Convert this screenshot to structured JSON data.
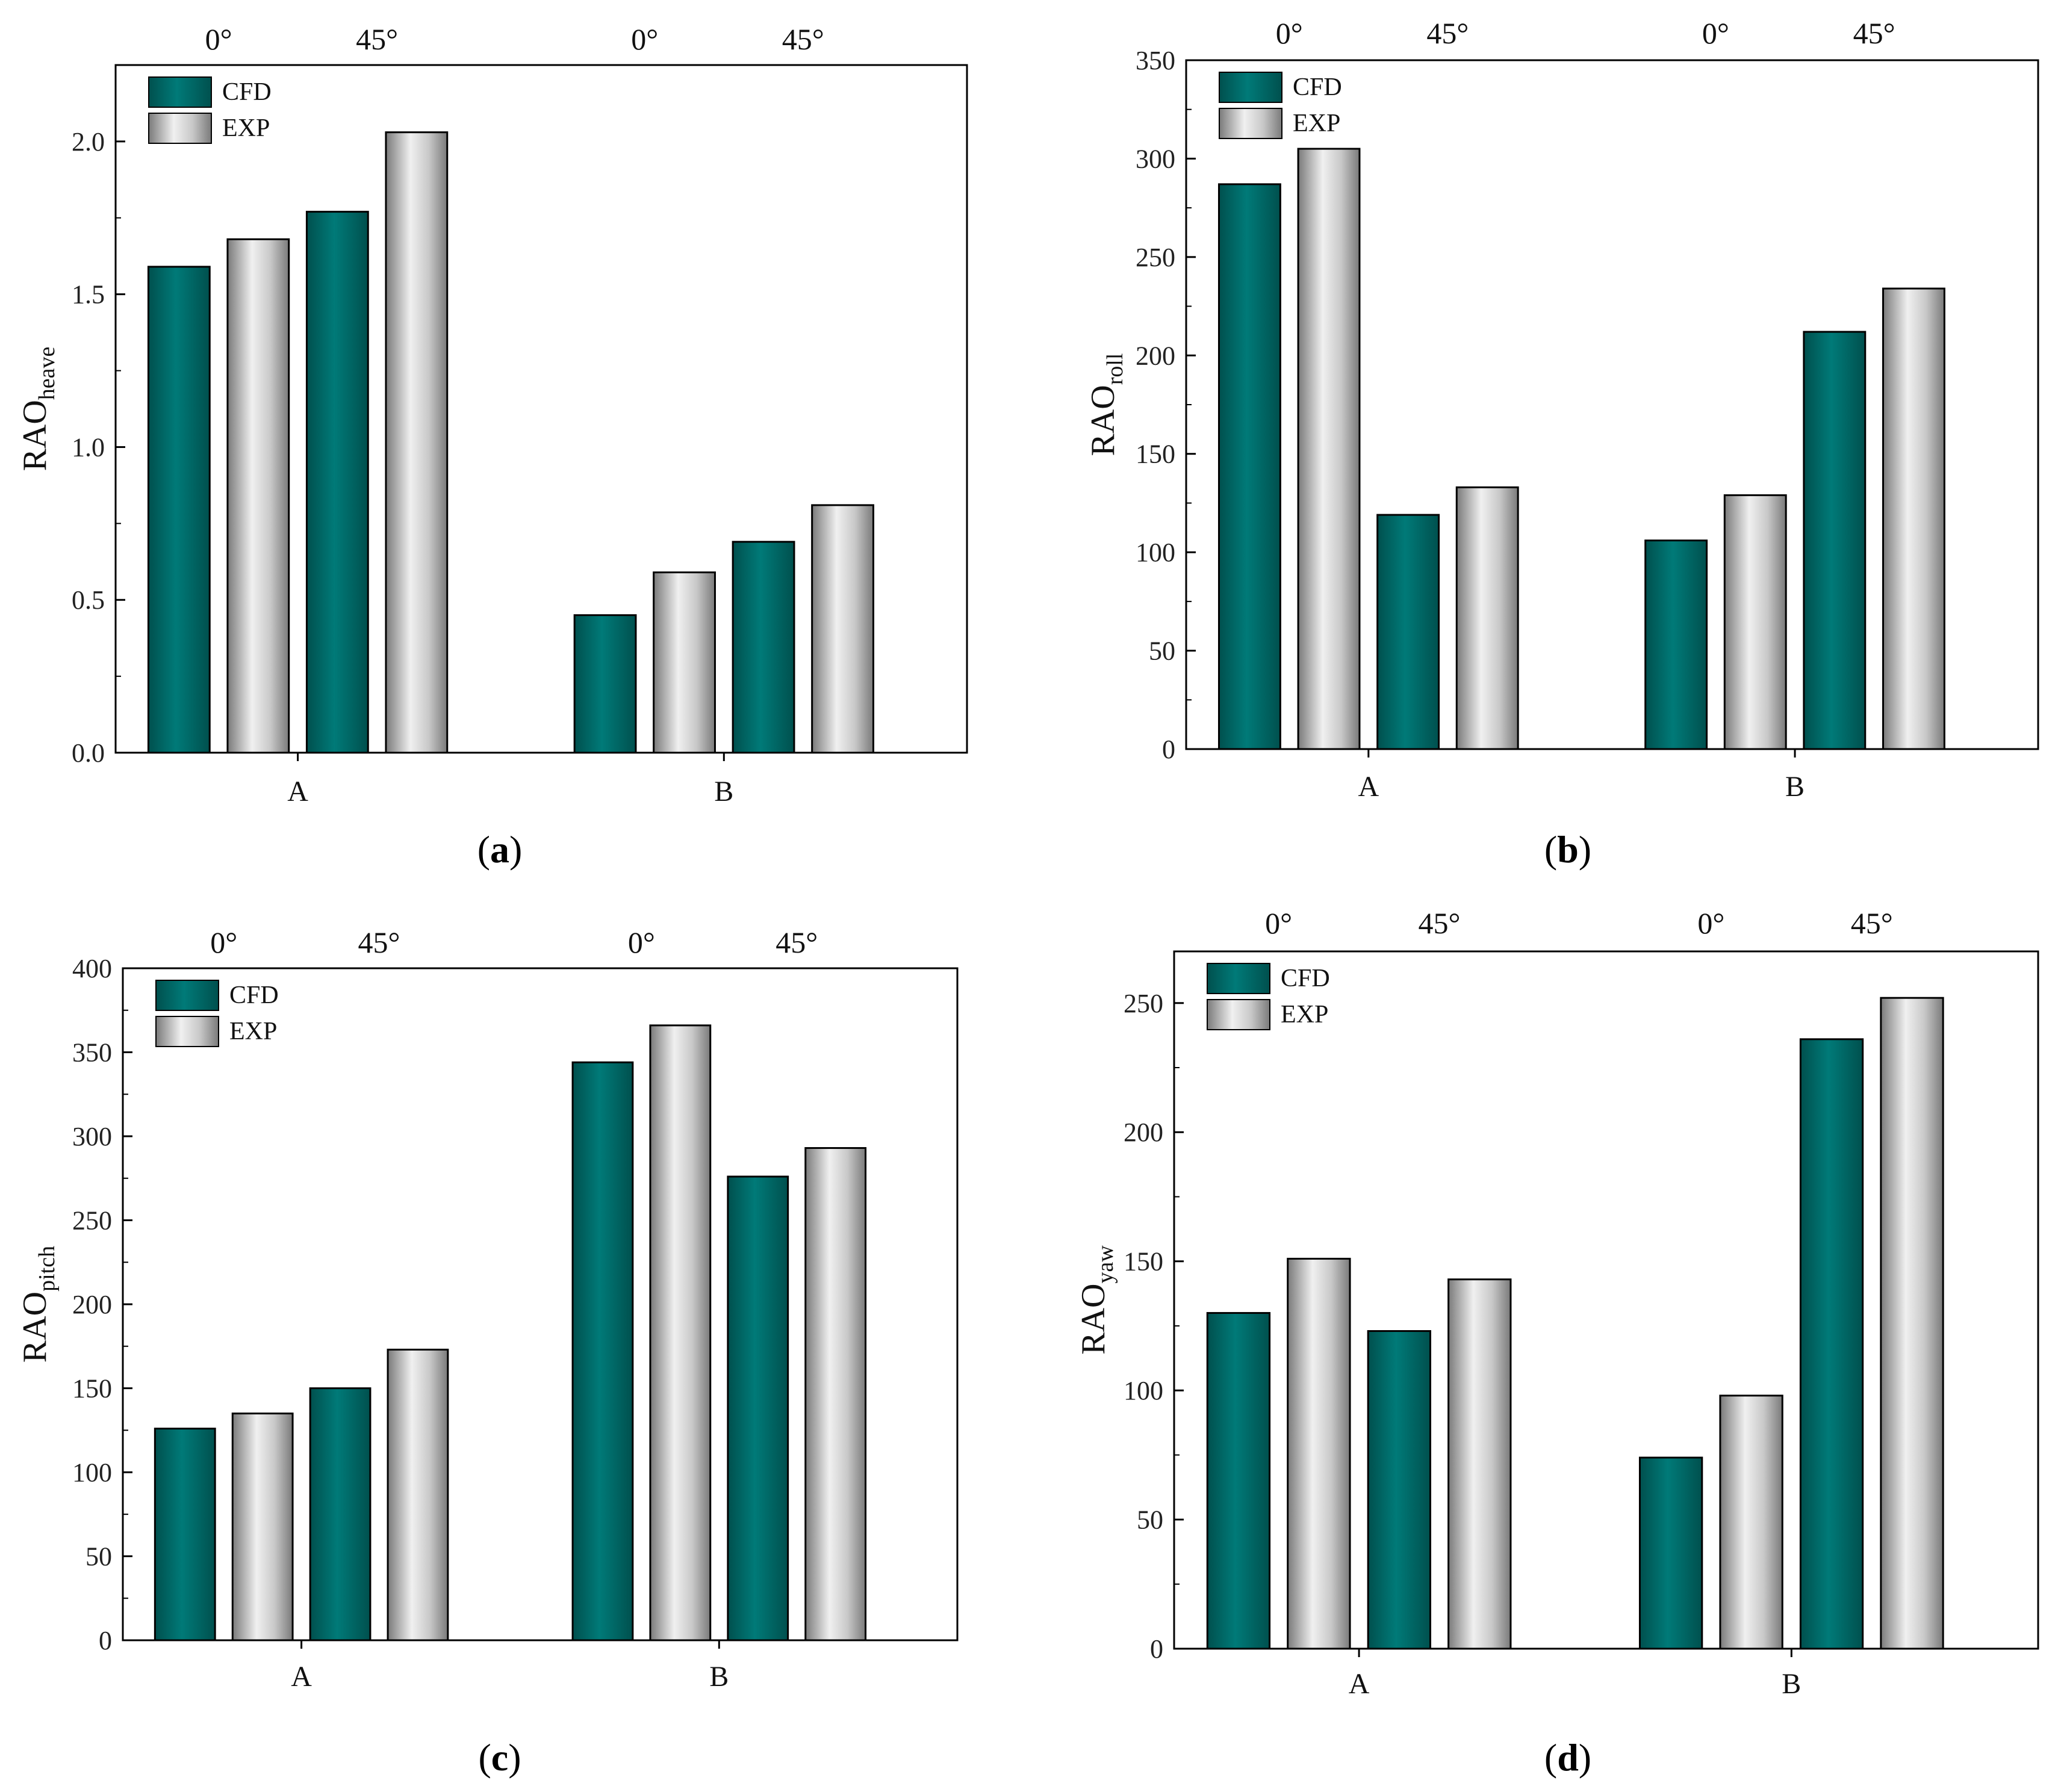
{
  "colors": {
    "cfd": "#007a78",
    "cfd_dark": "#00504e",
    "exp_light": "#f0f0f0",
    "exp_mid": "#c8c8c8",
    "exp_dark": "#7a7a7a",
    "axis": "#000000"
  },
  "chart_data": [
    {
      "type": "bar",
      "panel": "a",
      "panel_label": "a",
      "ylabel_main": "RAO",
      "ylabel_sub": "heave",
      "categories": [
        "A",
        "B"
      ],
      "angles": [
        "0°",
        "45°",
        "0°",
        "45°"
      ],
      "legend": [
        "CFD",
        "EXP"
      ],
      "ylim": [
        0,
        2.25
      ],
      "yticks": [
        0.0,
        0.5,
        1.0,
        1.5,
        2.0
      ],
      "ytick_labels": [
        "0.0",
        "0.5",
        "1.0",
        "1.5",
        "2.0"
      ],
      "series": [
        {
          "name": "CFD",
          "angle_values": {
            "A": [
              1.59,
              1.77
            ],
            "B": [
              0.45,
              0.69
            ]
          }
        },
        {
          "name": "EXP",
          "angle_values": {
            "A": [
              1.68,
              2.03
            ],
            "B": [
              0.59,
              0.81
            ]
          }
        }
      ]
    },
    {
      "type": "bar",
      "panel": "b",
      "panel_label": "b",
      "ylabel_main": "RAO",
      "ylabel_sub": "roll",
      "categories": [
        "A",
        "B"
      ],
      "angles": [
        "0°",
        "45°",
        "0°",
        "45°"
      ],
      "legend": [
        "CFD",
        "EXP"
      ],
      "ylim": [
        0,
        350
      ],
      "yticks": [
        0,
        50,
        100,
        150,
        200,
        250,
        300,
        350
      ],
      "ytick_labels": [
        "0",
        "50",
        "100",
        "150",
        "200",
        "250",
        "300",
        "350"
      ],
      "series": [
        {
          "name": "CFD",
          "angle_values": {
            "A": [
              287,
              119
            ],
            "B": [
              106,
              212
            ]
          }
        },
        {
          "name": "EXP",
          "angle_values": {
            "A": [
              305,
              133
            ],
            "B": [
              129,
              234
            ]
          }
        }
      ]
    },
    {
      "type": "bar",
      "panel": "c",
      "panel_label": "c",
      "ylabel_main": "RAO",
      "ylabel_sub": "pitch",
      "categories": [
        "A",
        "B"
      ],
      "angles": [
        "0°",
        "45°",
        "0°",
        "45°"
      ],
      "legend": [
        "CFD",
        "EXP"
      ],
      "ylim": [
        0,
        400
      ],
      "yticks": [
        0,
        50,
        100,
        150,
        200,
        250,
        300,
        350,
        400
      ],
      "ytick_labels": [
        "0",
        "50",
        "100",
        "150",
        "200",
        "250",
        "300",
        "350",
        "400"
      ],
      "series": [
        {
          "name": "CFD",
          "angle_values": {
            "A": [
              126,
              150
            ],
            "B": [
              344,
              276
            ]
          }
        },
        {
          "name": "EXP",
          "angle_values": {
            "A": [
              135,
              173
            ],
            "B": [
              366,
              293
            ]
          }
        }
      ]
    },
    {
      "type": "bar",
      "panel": "d",
      "panel_label": "d",
      "ylabel_main": "RAO",
      "ylabel_sub": "yaw",
      "categories": [
        "A",
        "B"
      ],
      "angles": [
        "0°",
        "45°",
        "0°",
        "45°"
      ],
      "legend": [
        "CFD",
        "EXP"
      ],
      "ylim": [
        0,
        270
      ],
      "yticks": [
        0,
        50,
        100,
        150,
        200,
        250
      ],
      "ytick_labels": [
        "0",
        "50",
        "100",
        "150",
        "200",
        "250"
      ],
      "series": [
        {
          "name": "CFD",
          "angle_values": {
            "A": [
              130,
              123
            ],
            "B": [
              74,
              236
            ]
          }
        },
        {
          "name": "EXP",
          "angle_values": {
            "A": [
              151,
              143
            ],
            "B": [
              98,
              252
            ]
          }
        }
      ]
    }
  ]
}
